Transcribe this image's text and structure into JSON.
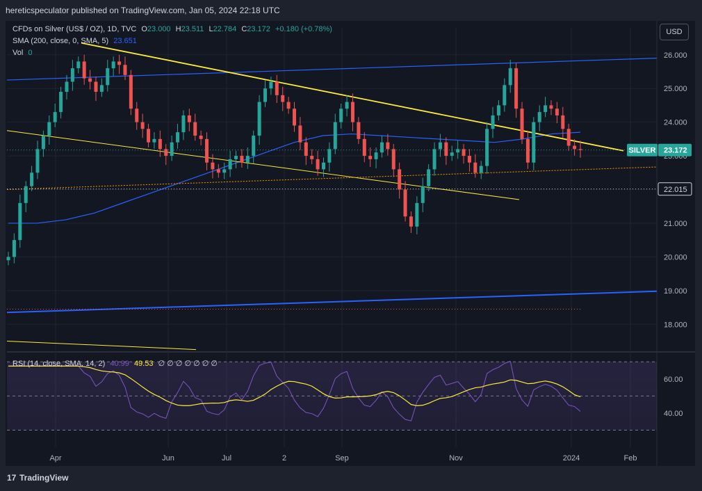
{
  "header": {
    "publisher_line": "hereticspeculator published on TradingView.com, Jan 05, 2024 22:18 UTC"
  },
  "legend": {
    "symbol_line": "CFDs on Silver (US$ / OZ), 1D, TVC",
    "o_label": "O",
    "o_value": "23.000",
    "h_label": "H",
    "h_value": "23.511",
    "l_label": "L",
    "l_value": "22.784",
    "c_label": "C",
    "c_value": "23.172",
    "change": "+0.180 (+0.78%)",
    "sma_label": "SMA (200, close, 0, SMA, 5)",
    "sma_value": "23.651",
    "vol_label": "Vol",
    "vol_value": "0",
    "rsi_label": "RSI (14, close, SMA, 14, 2)",
    "rsi_value": "40.99",
    "rsi_sma_value": "49.53",
    "rsi_extra": "∅ ∅ ∅ ∅ ∅ ∅ ∅"
  },
  "toolbar": {
    "currency_button": "USD"
  },
  "price_labels": {
    "symbol_tag": "SILVER",
    "last_price": "23.172",
    "hline_price": "22.015"
  },
  "footer": {
    "logo_text": "TradingView"
  },
  "colors": {
    "up": "#26a69a",
    "down": "#ef5350",
    "sma": "#2962ff",
    "trend_yellow": "#ffeb3b",
    "rsi": "#7e57c2",
    "rsi_ma": "#ffeb3b",
    "background": "#131722"
  },
  "chart_data": [
    {
      "type": "candlestick",
      "title": "CFDs on Silver (US$ / OZ), 1D, TVC",
      "y_axis_ticks": [
        "26.000",
        "25.000",
        "24.000",
        "23.000",
        "22.000",
        "21.000",
        "20.000",
        "19.000",
        "18.000"
      ],
      "ylim": [
        17.2,
        26.8
      ],
      "x_axis_ticks": [
        "Apr",
        "Jun",
        "Jul",
        "2",
        "Sep",
        "Nov",
        "2024",
        "Feb"
      ],
      "axis_position": "right",
      "grid": true,
      "closes_approx": [
        20.0,
        20.5,
        21.6,
        22.1,
        22.5,
        23.2,
        23.6,
        24.0,
        24.3,
        24.9,
        25.2,
        25.6,
        25.8,
        25.3,
        25.2,
        24.9,
        25.1,
        25.6,
        25.8,
        25.7,
        25.4,
        24.4,
        24.0,
        23.8,
        23.4,
        23.5,
        23.2,
        23.0,
        23.4,
        23.7,
        24.2,
        24.0,
        23.6,
        23.5,
        22.8,
        22.6,
        22.5,
        22.6,
        22.9,
        23.0,
        22.8,
        23.0,
        23.6,
        24.6,
        25.0,
        25.2,
        24.8,
        24.6,
        24.4,
        23.9,
        23.4,
        23.0,
        22.9,
        22.6,
        22.8,
        23.2,
        24.0,
        24.4,
        24.6,
        24.0,
        23.5,
        23.0,
        22.9,
        23.1,
        23.4,
        23.2,
        22.6,
        22.0,
        21.2,
        20.9,
        21.6,
        22.1,
        22.6,
        23.2,
        23.4,
        23.0,
        23.1,
        23.2,
        23.0,
        22.8,
        22.5,
        22.7,
        23.8,
        24.2,
        24.5,
        25.1,
        25.6,
        24.4,
        23.5,
        22.8,
        24.0,
        24.3,
        24.5,
        24.4,
        24.2,
        23.8,
        23.3,
        23.2,
        23.172
      ],
      "sma": {
        "name": "SMA (200, close, 0, SMA, 5)",
        "last_value": 23.651
      },
      "horizontal_lines": [
        22.015,
        18.45
      ],
      "last_price": 23.172
    },
    {
      "type": "line",
      "title": "RSI (14, close, SMA, 14, 2)",
      "y_axis_ticks": [
        "60.00",
        "40.00"
      ],
      "ylim": [
        20,
        75
      ],
      "bands": [
        70,
        50,
        30
      ],
      "series": [
        {
          "name": "RSI",
          "last_value": 40.99
        },
        {
          "name": "RSI SMA",
          "last_value": 49.53
        }
      ]
    }
  ]
}
